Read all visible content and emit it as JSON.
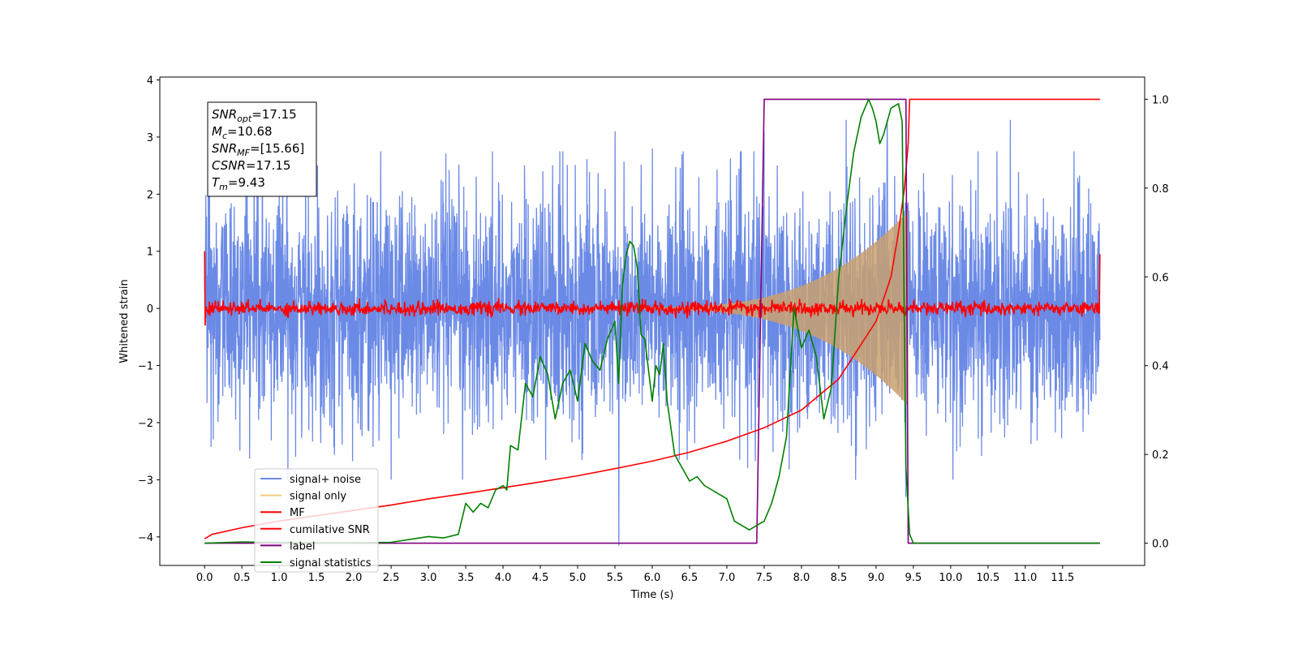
{
  "chart_data": {
    "type": "line",
    "xlabel": "Time (s)",
    "ylabel": "Whitened strain",
    "xlim": [
      -0.6,
      12.6
    ],
    "ylim": [
      -4.5,
      4.05
    ],
    "y2lim": [
      -0.05,
      1.05
    ],
    "x_ticks": [
      "0.0",
      "0.5",
      "1.0",
      "1.5",
      "2.0",
      "2.5",
      "3.0",
      "3.5",
      "4.0",
      "4.5",
      "5.0",
      "5.5",
      "6.0",
      "6.5",
      "7.0",
      "7.5",
      "8.0",
      "8.5",
      "9.0",
      "9.5",
      "10.0",
      "10.5",
      "11.0",
      "11.5"
    ],
    "y_ticks": [
      "4",
      "3",
      "2",
      "1",
      "0",
      "−1",
      "−2",
      "−3",
      "−4"
    ],
    "y2_ticks": [
      "1.0",
      "0.8",
      "0.6",
      "0.4",
      "0.2",
      "0.0"
    ],
    "grid": false,
    "legend_position": "lower-left",
    "legend": [
      {
        "label": "signal+ noise",
        "color": "#6b8ae6"
      },
      {
        "label": "signal only",
        "color": "#f5cd7a"
      },
      {
        "label": "MF",
        "color": "#ff0000"
      },
      {
        "label": "cumilative SNR",
        "color": "#ff0000"
      },
      {
        "label": "label",
        "color": "#800080"
      },
      {
        "label": "signal statistics",
        "color": "#008000"
      }
    ],
    "annotation": [
      {
        "base": "SNR",
        "sub": "opt",
        "value": "=17.15"
      },
      {
        "base": "M",
        "sub": "c",
        "value": "=10.68"
      },
      {
        "base": "SNR",
        "sub": "MF",
        "value": "=[15.66]"
      },
      {
        "base": "CSNR",
        "sub": "",
        "value": "=17.15"
      },
      {
        "base": "T",
        "sub": "m",
        "value": "=9.43"
      }
    ],
    "series": [
      {
        "name": "signal+ noise",
        "axis": "left",
        "color": "#6b8ae6",
        "t_start": 0.0,
        "t_end": 12.0,
        "std": 1.0,
        "outliers": [
          [
            0.05,
            2.87
          ],
          [
            1.0,
            2.0
          ],
          [
            5.55,
            -4.15
          ],
          [
            5.5,
            3.1
          ],
          [
            6.0,
            2.8
          ],
          [
            6.4,
            2.7
          ],
          [
            7.5,
            3.1
          ],
          [
            8.6,
            3.3
          ],
          [
            9.15,
            3.3
          ],
          [
            9.4,
            -3.3
          ],
          [
            10.8,
            3.3
          ]
        ]
      },
      {
        "name": "signal only",
        "axis": "left",
        "color": "#c9a06e",
        "t_start": 5.8,
        "t_end": 9.43,
        "envelope_start": 0.02,
        "envelope_end": 1.7
      },
      {
        "name": "MF",
        "axis": "left",
        "color": "#ff0000",
        "t_start": 0.0,
        "t_end": 12.0,
        "level": 0.0,
        "noise": 0.06,
        "edge_start": 1.0,
        "edge_end": 0.95
      },
      {
        "name": "cumilative SNR",
        "axis": "right",
        "color": "#ff0000",
        "x": [
          0.0,
          0.1,
          0.5,
          1.0,
          1.5,
          2.0,
          2.5,
          3.0,
          3.5,
          4.0,
          4.5,
          5.0,
          5.5,
          6.0,
          6.5,
          7.0,
          7.5,
          8.0,
          8.5,
          9.0,
          9.2,
          9.3,
          9.38,
          9.43,
          9.45,
          12.0
        ],
        "y": [
          0.01,
          0.02,
          0.035,
          0.05,
          0.062,
          0.074,
          0.086,
          0.1,
          0.112,
          0.125,
          0.138,
          0.152,
          0.168,
          0.185,
          0.205,
          0.23,
          0.26,
          0.3,
          0.37,
          0.5,
          0.6,
          0.7,
          0.8,
          0.9,
          1.0,
          1.0
        ]
      },
      {
        "name": "label",
        "axis": "right",
        "color": "#800080",
        "x": [
          0.0,
          7.4,
          7.5,
          9.4,
          9.43,
          12.0
        ],
        "y": [
          0.0,
          0.0,
          1.0,
          1.0,
          0.0,
          0.0
        ]
      },
      {
        "name": "signal statistics",
        "axis": "right",
        "color": "#008000",
        "x": [
          0.0,
          0.5,
          1.0,
          1.5,
          2.0,
          2.5,
          2.8,
          3.0,
          3.2,
          3.4,
          3.5,
          3.6,
          3.7,
          3.8,
          3.9,
          4.0,
          4.05,
          4.1,
          4.2,
          4.3,
          4.4,
          4.5,
          4.6,
          4.7,
          4.8,
          4.9,
          5.0,
          5.1,
          5.2,
          5.3,
          5.4,
          5.5,
          5.55,
          5.6,
          5.65,
          5.7,
          5.75,
          5.8,
          5.85,
          5.9,
          6.0,
          6.05,
          6.1,
          6.15,
          6.2,
          6.3,
          6.4,
          6.5,
          6.6,
          6.7,
          6.8,
          6.9,
          7.0,
          7.1,
          7.2,
          7.3,
          7.4,
          7.5,
          7.6,
          7.7,
          7.8,
          7.9,
          8.0,
          8.1,
          8.2,
          8.3,
          8.4,
          8.5,
          8.6,
          8.7,
          8.8,
          8.9,
          8.95,
          9.0,
          9.05,
          9.1,
          9.2,
          9.3,
          9.35,
          9.4,
          9.45,
          9.5,
          9.6,
          12.0
        ],
        "y": [
          0.0,
          0.003,
          0.002,
          0.001,
          0.001,
          0.002,
          0.01,
          0.015,
          0.012,
          0.02,
          0.09,
          0.07,
          0.09,
          0.08,
          0.12,
          0.13,
          0.12,
          0.22,
          0.21,
          0.36,
          0.33,
          0.42,
          0.38,
          0.28,
          0.36,
          0.39,
          0.32,
          0.45,
          0.41,
          0.39,
          0.46,
          0.5,
          0.36,
          0.58,
          0.65,
          0.68,
          0.67,
          0.62,
          0.47,
          0.46,
          0.32,
          0.4,
          0.38,
          0.45,
          0.32,
          0.2,
          0.17,
          0.14,
          0.15,
          0.13,
          0.12,
          0.11,
          0.1,
          0.05,
          0.04,
          0.03,
          0.04,
          0.05,
          0.09,
          0.15,
          0.24,
          0.53,
          0.44,
          0.48,
          0.42,
          0.28,
          0.35,
          0.6,
          0.75,
          0.88,
          0.96,
          1.0,
          0.98,
          0.95,
          0.9,
          0.92,
          0.98,
          0.99,
          0.95,
          0.17,
          0.02,
          0.0,
          0.0,
          0.0
        ]
      }
    ]
  }
}
